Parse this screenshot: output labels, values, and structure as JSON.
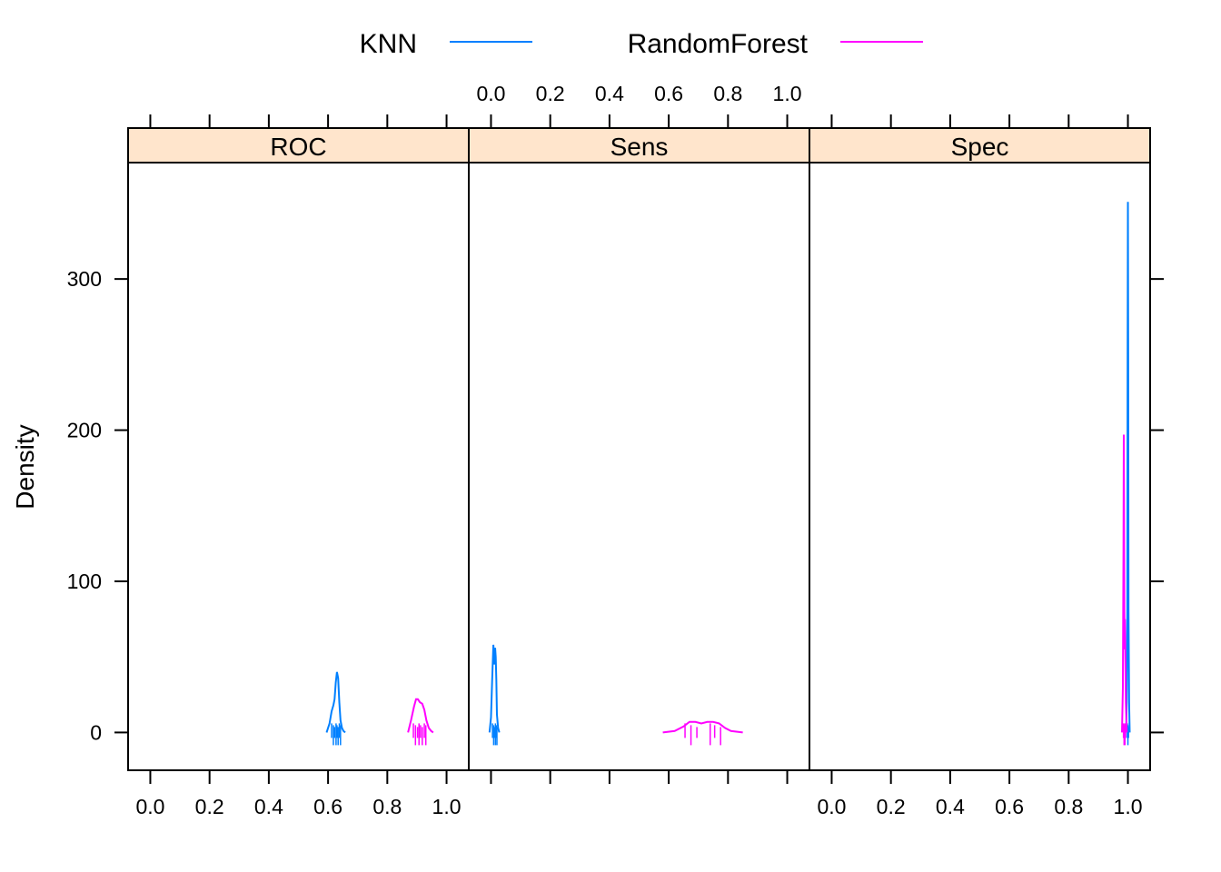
{
  "legend": {
    "items": [
      {
        "label": "KNN",
        "color": "#0080ff"
      },
      {
        "label": "RandomForest",
        "color": "#ff00ff"
      }
    ]
  },
  "axes": {
    "ylabel": "Density",
    "x_tick_labels": [
      "0.0",
      "0.2",
      "0.4",
      "0.6",
      "0.8",
      "1.0"
    ],
    "y_tick_labels": [
      "0",
      "100",
      "200",
      "300"
    ]
  },
  "colors": {
    "strip_fill": "#ffe5cc",
    "knn": "#0080ff",
    "random_forest": "#ff00ff"
  },
  "chart_data": {
    "type": "line",
    "subtype": "density",
    "xlim": [
      -0.075,
      1.075
    ],
    "ylim": [
      -25,
      377
    ],
    "x_ticks": [
      0,
      0.2,
      0.4,
      0.6,
      0.8,
      1.0
    ],
    "y_ticks": [
      0,
      100,
      200,
      300
    ],
    "panels": [
      {
        "name": "ROC",
        "series": [
          {
            "name": "KNN",
            "x": [
              0.595,
              0.605,
              0.612,
              0.618,
              0.622,
              0.626,
              0.63,
              0.634,
              0.638,
              0.642,
              0.647,
              0.652,
              0.658
            ],
            "y": [
              0,
              6,
              14,
              18,
              22,
              33,
              40,
              36,
              20,
              8,
              3,
              1,
              0
            ],
            "rug": [
              0.612,
              0.618,
              0.622,
              0.627,
              0.63,
              0.634,
              0.638,
              0.642
            ]
          },
          {
            "name": "RandomForest",
            "x": [
              0.87,
              0.88,
              0.89,
              0.897,
              0.903,
              0.91,
              0.918,
              0.925,
              0.932,
              0.94,
              0.948,
              0.955
            ],
            "y": [
              0,
              8,
              17,
              22,
              22,
              20,
              19,
              15,
              8,
              3,
              1,
              0
            ],
            "rug": [
              0.888,
              0.895,
              0.902,
              0.907,
              0.912,
              0.918,
              0.925,
              0.93
            ]
          }
        ]
      },
      {
        "name": "Sens",
        "series": [
          {
            "name": "KNN",
            "x": [
              -0.005,
              0.0,
              0.004,
              0.008,
              0.01,
              0.012,
              0.014,
              0.016,
              0.018,
              0.02,
              0.024,
              0.028
            ],
            "y": [
              0,
              10,
              35,
              58,
              52,
              45,
              56,
              50,
              35,
              12,
              3,
              0
            ],
            "rug": [
              0.005,
              0.009,
              0.012,
              0.015,
              0.018,
              0.02
            ]
          },
          {
            "name": "RandomForest",
            "x": [
              0.58,
              0.62,
              0.65,
              0.67,
              0.69,
              0.71,
              0.73,
              0.75,
              0.77,
              0.79,
              0.81,
              0.85
            ],
            "y": [
              0,
              1,
              4,
              7,
              7,
              6,
              7,
              7,
              6,
              3,
              1,
              0
            ],
            "rug": [
              0.655,
              0.675,
              0.695,
              0.74,
              0.755,
              0.775
            ]
          }
        ]
      },
      {
        "name": "Spec",
        "series": [
          {
            "name": "KNN",
            "x": [
              0.994,
              0.996,
              0.998,
              0.999,
              1.0,
              1.001,
              1.002,
              1.004,
              1.006
            ],
            "y": [
              0,
              20,
              80,
              250,
              351,
              250,
              80,
              20,
              0
            ],
            "rug": [
              0.998,
              1.0,
              1.002
            ]
          },
          {
            "name": "RandomForest",
            "x": [
              0.98,
              0.983,
              0.985,
              0.986,
              0.987,
              0.988,
              0.989,
              0.99,
              0.991,
              0.993,
              0.996
            ],
            "y": [
              0,
              30,
              120,
              197,
              150,
              80,
              55,
              75,
              60,
              20,
              0
            ],
            "rug": [
              0.985,
              0.987,
              0.989,
              0.99,
              0.992
            ]
          }
        ]
      }
    ]
  }
}
